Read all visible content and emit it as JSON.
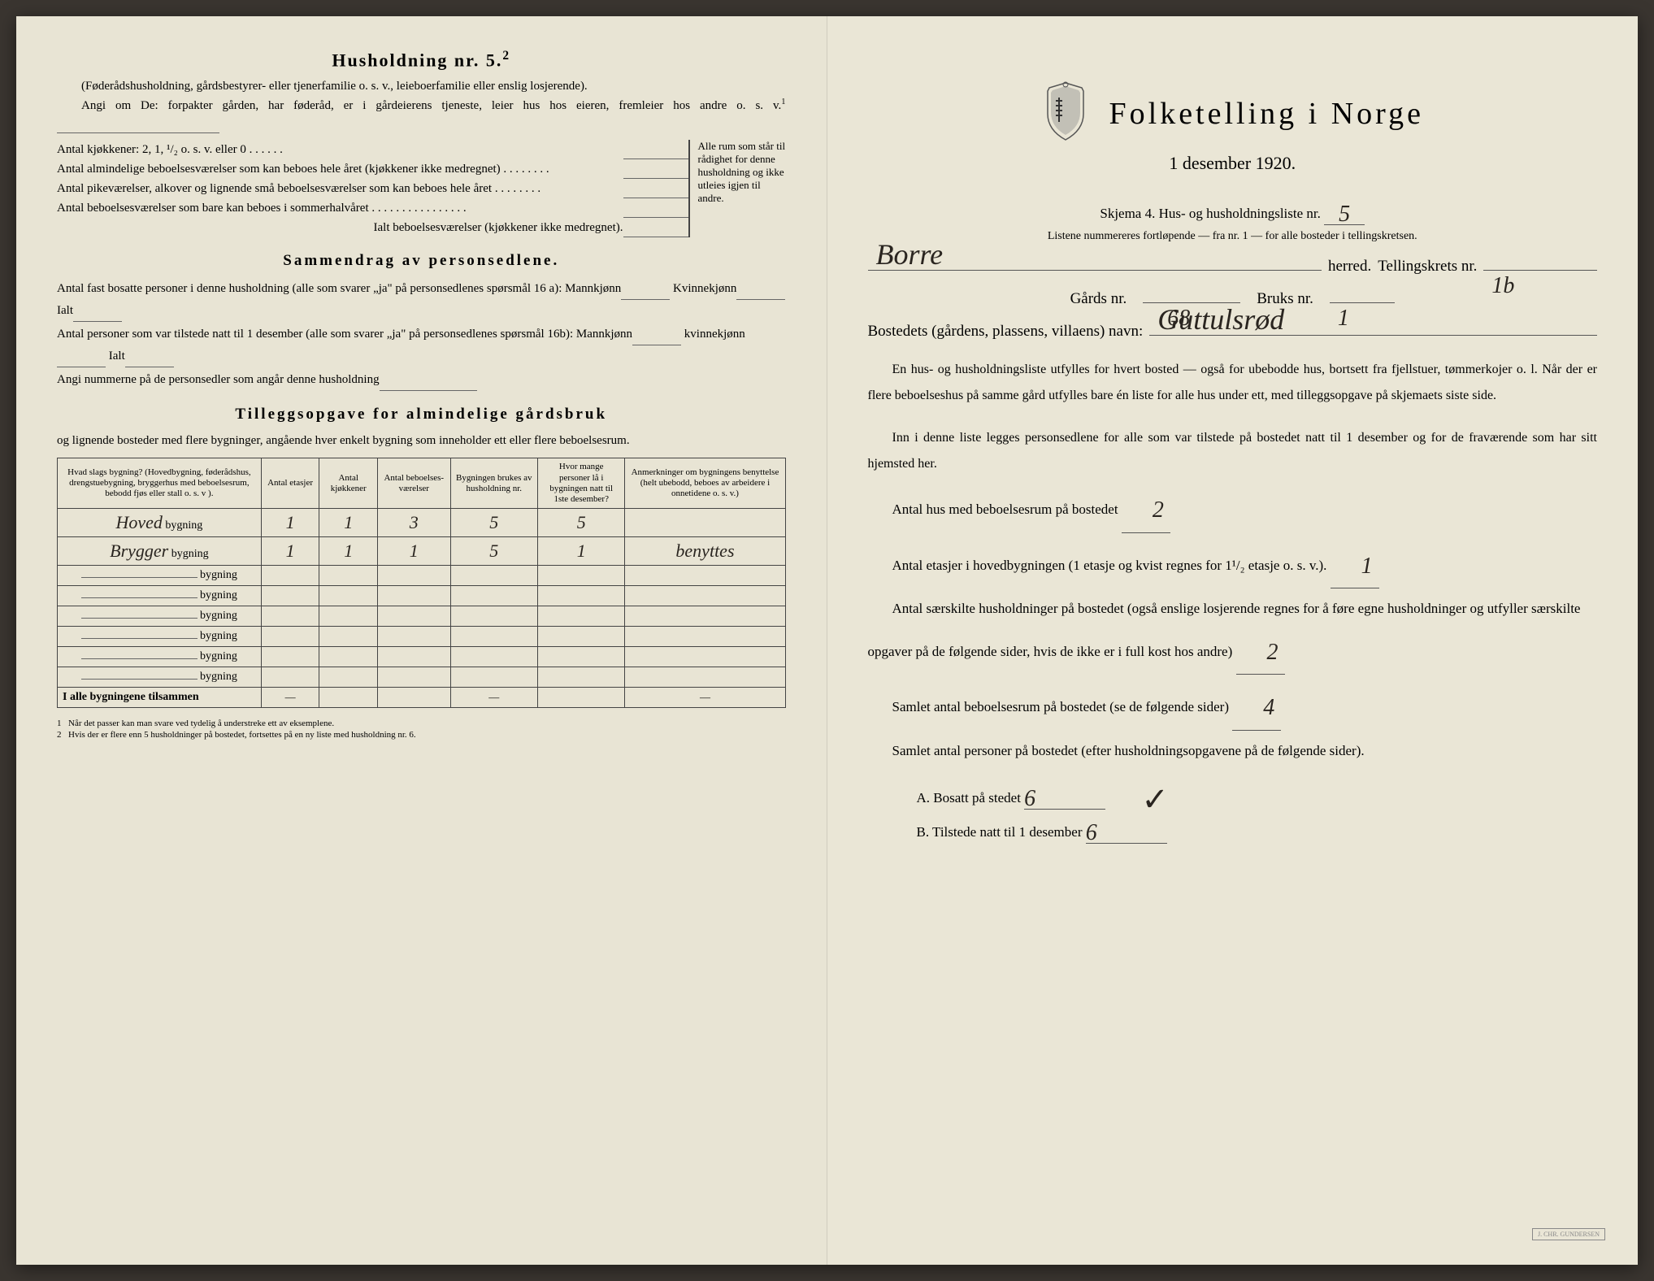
{
  "left": {
    "title": "Husholdning nr. 5.",
    "title_sup": "2",
    "intro_paren": "(Føderådshusholdning, gårdsbestyrer- eller tjenerfamilie o. s. v., leieboerfamilie eller enslig losjerende).",
    "intro_main": "Angi om De: forpakter gården, har føderåd, er i gårdeierens tjeneste, leier hus hos eieren, fremleier hos andre o. s. v.",
    "intro_sup": "1",
    "kitchens_label": "Antal kjøkkener: 2, 1, ¹/₂ o. s. v. eller 0 . . . . . .",
    "rooms_1": "Antal almindelige beboelsesværelser som kan beboes hele året (kjøkkener ikke medregnet) . . . . . . . .",
    "rooms_2": "Antal pikeværelser, alkover og lignende små beboelsesværelser som kan beboes hele året . . . . . . . .",
    "rooms_3": "Antal beboelsesværelser som bare kan beboes i sommerhalvåret . . . . . . . . . . . . . . . .",
    "rooms_total": "Ialt beboelsesværelser (kjøkkener ikke medregnet).",
    "bracket_text": "Alle rum som står til rådighet for denne husholdning og ikke utleies igjen til andre.",
    "section_sammendrag": "Sammendrag av personsedlene.",
    "sammendrag_1": "Antal fast bosatte personer i denne husholdning (alle som svarer „ja\" på personsedlenes spørsmål 16 a): Mannkjønn",
    "sammendrag_1b": "Kvinnekjønn",
    "sammendrag_1c": "Ialt",
    "sammendrag_2": "Antal personer som var tilstede natt til 1 desember (alle som svarer „ja\" på personsedlenes spørsmål 16b): Mannkjønn",
    "sammendrag_2b": "kvinnekjønn",
    "sammendrag_2c": "Ialt",
    "sammendrag_3": "Angi nummerne på de personsedler som angår denne husholdning",
    "section_tillegg": "Tilleggsopgave for almindelige gårdsbruk",
    "tillegg_sub": "og lignende bosteder med flere bygninger, angående hver enkelt bygning som inneholder ett eller flere beboelsesrum.",
    "table": {
      "headers": [
        "Hvad slags bygning?\n(Hovedbygning, føderådshus, drengstuebygning, bryggerhus med beboelsesrum, bebodd fjøs eller stall o. s. v ).",
        "Antal etasjer",
        "Antal kjøkkener",
        "Antal beboelses-værelser",
        "Bygningen brukes av husholdning nr.",
        "Hvor mange personer lå i bygningen natt til 1ste desember?",
        "Anmerkninger om bygningens benyttelse (helt ubebodd, beboes av arbeidere i onnetidene o. s. v.)"
      ],
      "rows": [
        {
          "type": "Hoved",
          "etasjer": "1",
          "kjokkener": "1",
          "vaerelser": "3",
          "hushold": "5",
          "personer": "5",
          "anm": ""
        },
        {
          "type": "Brygger",
          "etasjer": "1",
          "kjokkener": "1",
          "vaerelser": "1",
          "hushold": "5",
          "personer": "1",
          "anm": "benyttes"
        }
      ],
      "bygning_label": "bygning",
      "total_label": "I alle bygningene tilsammen",
      "dash": "—"
    },
    "footnotes": [
      "Når det passer kan man svare ved tydelig å understreke ett av eksemplene.",
      "Hvis der er flere enn 5 husholdninger på bostedet, fortsettes på en ny liste med husholdning nr. 6."
    ]
  },
  "right": {
    "title": "Folketelling i Norge",
    "subtitle": "1 desember 1920.",
    "skjema": "Skjema 4.  Hus- og husholdningsliste nr.",
    "skjema_nr": "5",
    "listene": "Listene nummereres fortløpende — fra nr. 1 — for alle bosteder i tellingskretsen.",
    "herred_hw": "Borre",
    "herred_label": "herred.",
    "krets_label": "Tellingskrets nr.",
    "krets_nr": "1b",
    "gards_label": "Gårds nr.",
    "gards_nr": "68",
    "bruks_label": "Bruks nr.",
    "bruks_nr": "1",
    "bosted_label": "Bostedets (gårdens, plassens, villaens) navn:",
    "bosted_hw": "Guttulsrød",
    "para1": "En hus- og husholdningsliste utfylles for hvert bosted — også for ubebodde hus, bortsett fra fjellstuer, tømmerkojer o. l. Når der er flere beboelseshus på samme gård utfylles bare én liste for alle hus under ett, med tilleggsopgave på skjemaets siste side.",
    "para2": "Inn i denne liste legges personsedlene for alle som var tilstede på bostedet natt til 1 desember og for de fraværende som har sitt hjemsted her.",
    "q1": "Antal hus med beboelsesrum på bostedet",
    "q1_val": "2",
    "q2": "Antal etasjer i hovedbygningen (1 etasje og kvist regnes for 1¹/₂ etasje o. s. v.).",
    "q2_val": "1",
    "q3": "Antal særskilte husholdninger på bostedet (også enslige losjerende regnes for å føre egne husholdninger og utfyller særskilte opgaver på de følgende sider, hvis de ikke er i full kost hos andre)",
    "q3_val": "2",
    "q4": "Samlet antal beboelsesrum på bostedet (se de følgende sider)",
    "q4_val": "4",
    "q5": "Samlet antal personer på bostedet (efter husholdningsopgavene på de følgende sider).",
    "q5a_label": "A.  Bosatt på stedet",
    "q5a_val": "6",
    "q5b_label": "B.  Tilstede natt til 1 desember",
    "q5b_val": "6",
    "check": "✓"
  },
  "colors": {
    "bg": "#e8e4d4",
    "text": "#1a1814",
    "hw": "#2a2520"
  }
}
